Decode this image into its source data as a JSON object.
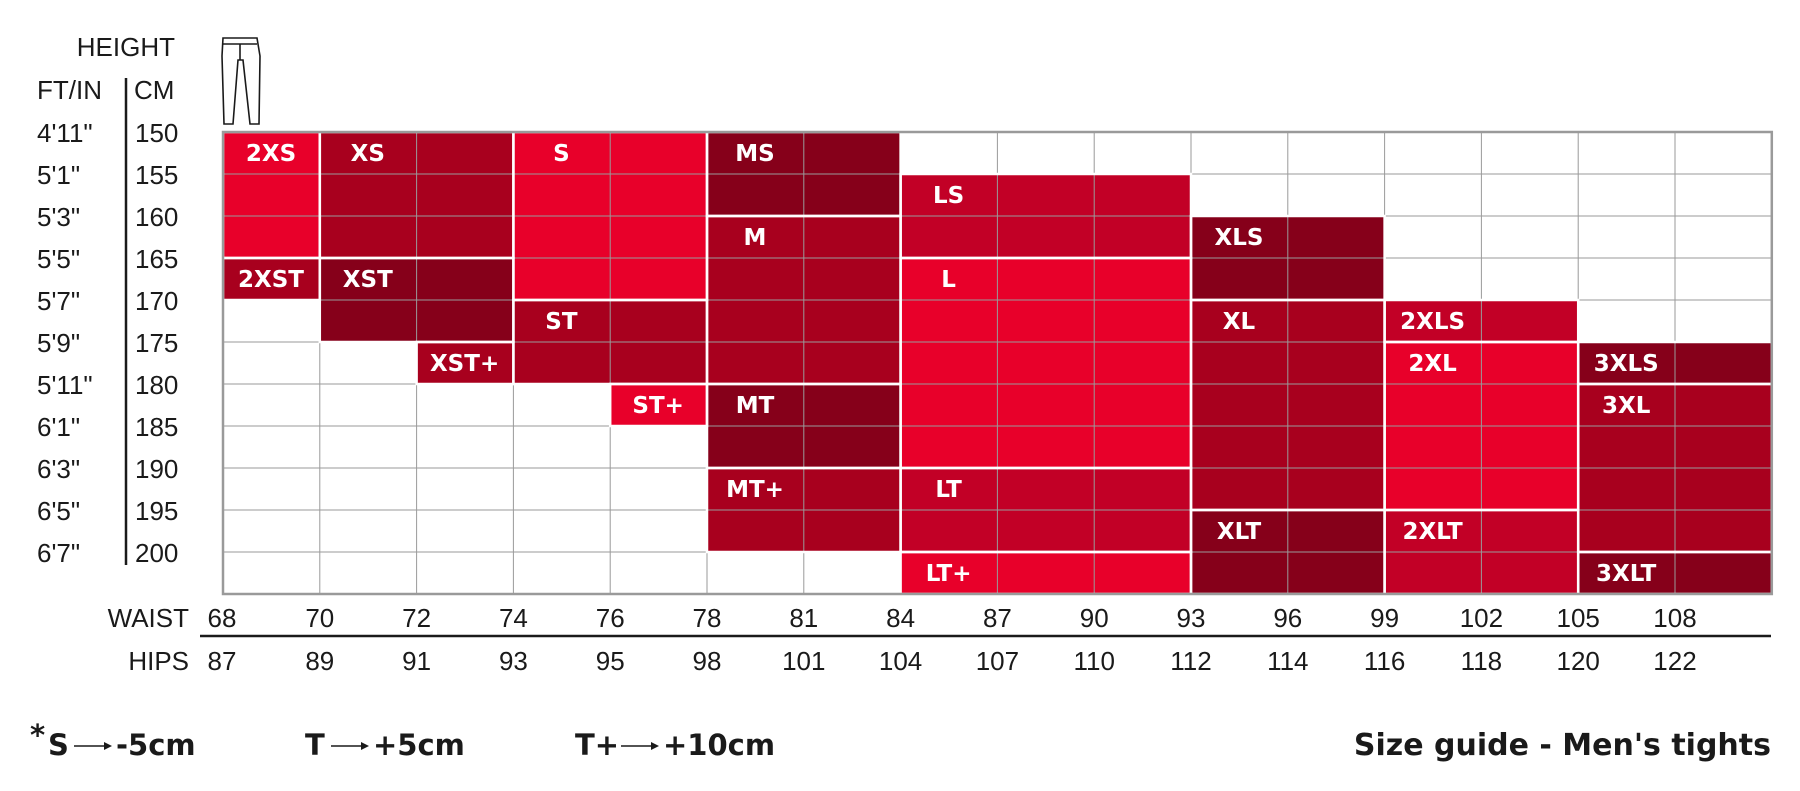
{
  "headers": {
    "height": "HEIGHT",
    "ft_in": "FT/IN",
    "cm": "CM",
    "waist": "WAIST",
    "hips": "HIPS"
  },
  "icon": "tights-icon",
  "colors": {
    "bright": "#e8002a",
    "medium": "#c20026",
    "dark": "#a8001e",
    "darkest": "#86001a",
    "grid": "#9a9a9a",
    "label": "#ffffff"
  },
  "chart_data": {
    "type": "heatmap",
    "title": "Size guide - Men's tights",
    "height_ft_in": [
      "4'11\"",
      "5'1\"",
      "5'3\"",
      "5'5\"",
      "5'7\"",
      "5'9\"",
      "5'11\"",
      "6'1\"",
      "6'3\"",
      "6'5\"",
      "6'7\""
    ],
    "height_cm": [
      "150",
      "155",
      "160",
      "165",
      "170",
      "175",
      "180",
      "185",
      "190",
      "195",
      "200"
    ],
    "waist_cm": [
      "68",
      "70",
      "72",
      "74",
      "76",
      "78",
      "81",
      "84",
      "87",
      "90",
      "93",
      "96",
      "99",
      "102",
      "105",
      "108"
    ],
    "hips_cm": [
      "87",
      "89",
      "91",
      "93",
      "95",
      "98",
      "101",
      "104",
      "107",
      "110",
      "112",
      "114",
      "116",
      "118",
      "120",
      "122"
    ],
    "sizes": [
      {
        "label": "2XS",
        "waist": [
          68,
          70
        ],
        "height": [
          150,
          165
        ],
        "color": "bright"
      },
      {
        "label": "2XST",
        "waist": [
          68,
          70
        ],
        "height": [
          165,
          170
        ],
        "color": "dark"
      },
      {
        "label": "XS",
        "waist": [
          70,
          74
        ],
        "height": [
          150,
          165
        ],
        "color": "dark"
      },
      {
        "label": "XST",
        "waist": [
          70,
          74
        ],
        "height": [
          165,
          175
        ],
        "color": "darkest"
      },
      {
        "label": "XST+",
        "waist": [
          72,
          74
        ],
        "height": [
          175,
          180
        ],
        "color": "dark"
      },
      {
        "label": "S",
        "waist": [
          74,
          78
        ],
        "height": [
          150,
          170
        ],
        "color": "bright"
      },
      {
        "label": "ST",
        "waist": [
          74,
          78
        ],
        "height": [
          170,
          180
        ],
        "color": "dark"
      },
      {
        "label": "ST+",
        "waist": [
          76,
          78
        ],
        "height": [
          180,
          185
        ],
        "color": "bright"
      },
      {
        "label": "MS",
        "waist": [
          78,
          84
        ],
        "height": [
          150,
          160
        ],
        "color": "darkest"
      },
      {
        "label": "M",
        "waist": [
          78,
          84
        ],
        "height": [
          160,
          180
        ],
        "color": "dark"
      },
      {
        "label": "MT",
        "waist": [
          78,
          84
        ],
        "height": [
          180,
          190
        ],
        "color": "darkest"
      },
      {
        "label": "MT+",
        "waist": [
          78,
          84
        ],
        "height": [
          190,
          200
        ],
        "color": "dark"
      },
      {
        "label": "LS",
        "waist": [
          84,
          93
        ],
        "height": [
          155,
          165
        ],
        "color": "medium"
      },
      {
        "label": "L",
        "waist": [
          84,
          93
        ],
        "height": [
          165,
          190
        ],
        "color": "bright"
      },
      {
        "label": "LT",
        "waist": [
          84,
          93
        ],
        "height": [
          190,
          200
        ],
        "color": "medium"
      },
      {
        "label": "LT+",
        "waist": [
          84,
          93
        ],
        "height": [
          200,
          205
        ],
        "color": "bright"
      },
      {
        "label": "XLS",
        "waist": [
          93,
          99
        ],
        "height": [
          160,
          170
        ],
        "color": "darkest"
      },
      {
        "label": "XL",
        "waist": [
          93,
          99
        ],
        "height": [
          170,
          195
        ],
        "color": "dark"
      },
      {
        "label": "XLT",
        "waist": [
          93,
          99
        ],
        "height": [
          195,
          205
        ],
        "color": "darkest"
      },
      {
        "label": "2XLS",
        "waist": [
          99,
          105
        ],
        "height": [
          170,
          175
        ],
        "color": "medium"
      },
      {
        "label": "2XL",
        "waist": [
          99,
          105
        ],
        "height": [
          175,
          195
        ],
        "color": "bright"
      },
      {
        "label": "2XLT",
        "waist": [
          99,
          105
        ],
        "height": [
          195,
          205
        ],
        "color": "medium"
      },
      {
        "label": "3XLS",
        "waist": [
          105,
          111
        ],
        "height": [
          175,
          180
        ],
        "color": "darkest"
      },
      {
        "label": "3XL",
        "waist": [
          105,
          111
        ],
        "height": [
          180,
          200
        ],
        "color": "dark"
      },
      {
        "label": "3XLT",
        "waist": [
          105,
          111
        ],
        "height": [
          200,
          205
        ],
        "color": "darkest"
      }
    ],
    "legend": [
      {
        "prefix": "*",
        "code": "S",
        "value": "-5cm"
      },
      {
        "prefix": "",
        "code": "T",
        "value": "+5cm"
      },
      {
        "prefix": "",
        "code": "T+",
        "value": "+10cm"
      }
    ]
  }
}
